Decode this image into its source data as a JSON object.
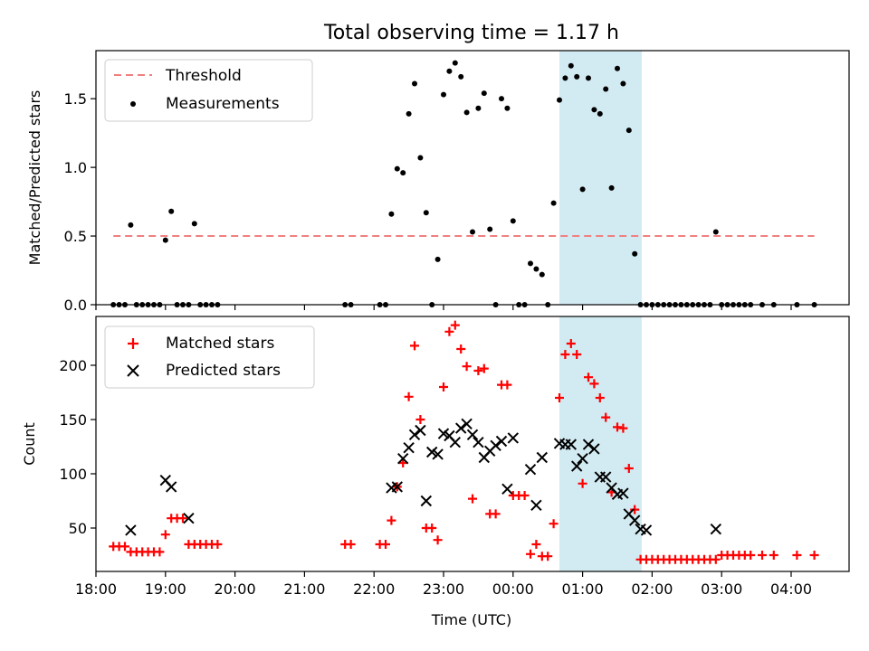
{
  "chart_data": {
    "type": "scatter",
    "title": "Total observing time = 1.17 h",
    "xlabel": "Time (UTC)",
    "xlim": [
      "18:00",
      "04:50"
    ],
    "x_ticks": [
      "18:00",
      "19:00",
      "20:00",
      "21:00",
      "22:00",
      "23:00",
      "00:00",
      "01:00",
      "02:00",
      "03:00",
      "04:00"
    ],
    "shaded_interval": [
      "00:40",
      "01:51"
    ],
    "shade_color": "#add8e6",
    "top_panel": {
      "ylabel": "Matched/Predicted stars",
      "ylim": [
        0,
        1.85
      ],
      "y_ticks": [
        "0.0",
        "0.5",
        "1.0",
        "1.5"
      ],
      "legend": [
        "Threshold",
        "Measurements"
      ],
      "threshold": {
        "name": "Threshold",
        "value": 0.5,
        "x_range": [
          "18:15",
          "04:20"
        ],
        "color": "#f08080"
      },
      "measurements": {
        "name": "Measurements",
        "color": "#000000",
        "x": [
          "18:15",
          "18:20",
          "18:25",
          "18:30",
          "18:35",
          "18:40",
          "18:45",
          "18:50",
          "18:55",
          "19:00",
          "19:05",
          "19:10",
          "19:15",
          "19:20",
          "19:25",
          "19:30",
          "19:35",
          "19:40",
          "19:45",
          "21:35",
          "21:40",
          "22:05",
          "22:10",
          "22:15",
          "22:20",
          "22:25",
          "22:30",
          "22:35",
          "22:40",
          "22:45",
          "22:50",
          "22:55",
          "23:00",
          "23:05",
          "23:10",
          "23:15",
          "23:20",
          "23:25",
          "23:30",
          "23:35",
          "23:40",
          "23:45",
          "23:50",
          "23:55",
          "00:00",
          "00:05",
          "00:10",
          "00:15",
          "00:20",
          "00:25",
          "00:30",
          "00:35",
          "00:40",
          "00:45",
          "00:50",
          "00:55",
          "01:00",
          "01:05",
          "01:10",
          "01:15",
          "01:20",
          "01:25",
          "01:30",
          "01:35",
          "01:40",
          "01:45",
          "01:50",
          "01:55",
          "02:00",
          "02:05",
          "02:10",
          "02:15",
          "02:20",
          "02:25",
          "02:30",
          "02:35",
          "02:40",
          "02:45",
          "02:50",
          "02:55",
          "03:00",
          "03:05",
          "03:10",
          "03:15",
          "03:20",
          "03:25",
          "03:35",
          "03:45",
          "04:05",
          "04:20"
        ],
        "y": [
          0,
          0,
          0,
          0.58,
          0,
          0,
          0,
          0,
          0,
          0.47,
          0.68,
          0,
          0,
          0,
          0.59,
          0,
          0,
          0,
          0,
          0,
          0,
          0,
          0,
          0.66,
          0.99,
          0.96,
          1.39,
          1.61,
          1.07,
          0.67,
          0,
          0.33,
          1.53,
          1.7,
          1.76,
          1.66,
          1.4,
          0.53,
          1.43,
          1.54,
          0.55,
          0,
          1.5,
          1.43,
          0.61,
          0,
          0,
          0.3,
          0.26,
          0.22,
          0,
          0.74,
          1.49,
          1.65,
          1.74,
          1.66,
          0.84,
          1.65,
          1.42,
          1.39,
          1.57,
          0.85,
          1.72,
          1.61,
          1.27,
          0.37,
          0,
          0,
          0,
          0,
          0,
          0,
          0,
          0,
          0,
          0,
          0,
          0,
          0,
          0.53,
          0,
          0,
          0,
          0,
          0,
          0,
          0,
          0,
          0,
          0
        ]
      }
    },
    "bottom_panel": {
      "ylabel": "Count",
      "ylim": [
        10,
        245
      ],
      "y_ticks": [
        "50",
        "100",
        "150",
        "200"
      ],
      "legend": [
        "Matched stars",
        "Predicted stars"
      ],
      "series": [
        {
          "name": "Matched stars",
          "marker": "plus",
          "color": "#ff0000",
          "x": [
            "18:15",
            "18:20",
            "18:25",
            "18:30",
            "18:35",
            "18:40",
            "18:45",
            "18:50",
            "18:55",
            "19:00",
            "19:05",
            "19:10",
            "19:15",
            "19:20",
            "19:25",
            "19:30",
            "19:35",
            "19:40",
            "19:45",
            "21:35",
            "21:40",
            "22:05",
            "22:10",
            "22:15",
            "22:20",
            "22:25",
            "22:30",
            "22:35",
            "22:40",
            "22:45",
            "22:50",
            "22:55",
            "23:00",
            "23:05",
            "23:10",
            "23:15",
            "23:20",
            "23:25",
            "23:30",
            "23:35",
            "23:40",
            "23:45",
            "23:50",
            "23:55",
            "00:00",
            "00:05",
            "00:10",
            "00:15",
            "00:20",
            "00:25",
            "00:30",
            "00:35",
            "00:40",
            "00:45",
            "00:50",
            "00:55",
            "01:00",
            "01:05",
            "01:10",
            "01:15",
            "01:20",
            "01:25",
            "01:30",
            "01:35",
            "01:40",
            "01:45",
            "01:50",
            "01:55",
            "02:00",
            "02:05",
            "02:10",
            "02:15",
            "02:20",
            "02:25",
            "02:30",
            "02:35",
            "02:40",
            "02:45",
            "02:50",
            "02:55",
            "03:00",
            "03:05",
            "03:10",
            "03:15",
            "03:20",
            "03:25",
            "03:35",
            "03:45",
            "04:05",
            "04:20"
          ],
          "y": [
            33,
            33,
            33,
            28,
            28,
            28,
            28,
            28,
            28,
            44,
            59,
            59,
            59,
            35,
            35,
            35,
            35,
            35,
            35,
            35,
            35,
            35,
            35,
            57,
            88,
            110,
            171,
            218,
            150,
            50,
            50,
            39,
            180,
            231,
            237,
            215,
            199,
            77,
            195,
            197,
            63,
            63,
            182,
            182,
            80,
            80,
            80,
            26,
            35,
            24,
            24,
            54,
            170,
            210,
            220,
            210,
            91,
            189,
            183,
            170,
            152,
            83,
            143,
            142,
            105,
            67,
            21,
            21,
            21,
            21,
            21,
            21,
            21,
            21,
            21,
            21,
            21,
            21,
            21,
            21,
            25,
            25,
            25,
            25,
            25,
            25,
            25,
            25,
            25,
            25
          ]
        },
        {
          "name": "Predicted stars",
          "marker": "x",
          "color": "#000000",
          "x": [
            "18:30",
            "19:00",
            "19:05",
            "19:20",
            "22:15",
            "22:20",
            "22:25",
            "22:30",
            "22:35",
            "22:40",
            "22:45",
            "22:50",
            "22:55",
            "23:00",
            "23:05",
            "23:10",
            "23:15",
            "23:20",
            "23:25",
            "23:30",
            "23:35",
            "23:40",
            "23:45",
            "23:50",
            "23:55",
            "00:00",
            "00:15",
            "00:20",
            "00:25",
            "00:40",
            "00:45",
            "00:50",
            "00:55",
            "01:00",
            "01:05",
            "01:10",
            "01:15",
            "01:20",
            "01:25",
            "01:30",
            "01:35",
            "01:40",
            "01:45",
            "01:50",
            "01:55",
            "02:55"
          ],
          "y": [
            48,
            94,
            88,
            59,
            87,
            88,
            114,
            124,
            136,
            140,
            75,
            120,
            118,
            137,
            135,
            129,
            142,
            146,
            136,
            129,
            115,
            121,
            126,
            130,
            86,
            133,
            104,
            71,
            115,
            128,
            127,
            127,
            107,
            114,
            127,
            123,
            97,
            97,
            87,
            81,
            82,
            63,
            57,
            49,
            48,
            49
          ]
        }
      ]
    }
  }
}
